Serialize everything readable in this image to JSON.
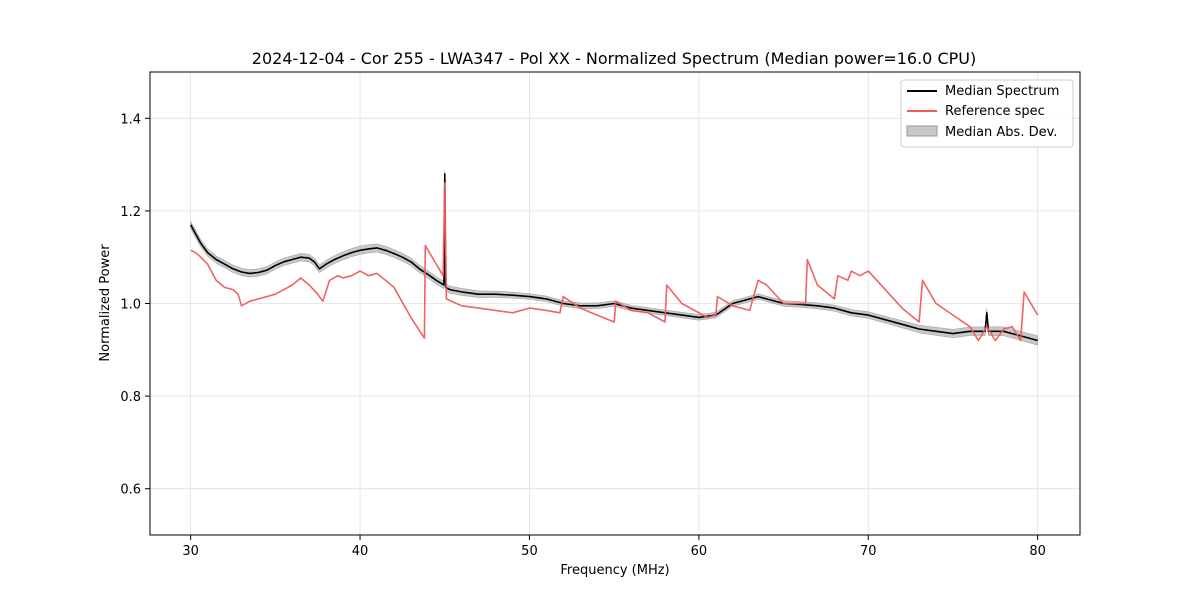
{
  "chart_data": {
    "type": "line",
    "title": "2024-12-04 - Cor 255 - LWA347 - Pol XX - Normalized Spectrum (Median power=16.0 CPU)",
    "xlabel": "Frequency (MHz)",
    "ylabel": "Normalized Power",
    "xlim": [
      27.6,
      82.5
    ],
    "ylim": [
      0.5,
      1.5
    ],
    "xticks": [
      30,
      40,
      50,
      60,
      70,
      80
    ],
    "yticks": [
      0.6,
      0.8,
      1.0,
      1.2,
      1.4
    ],
    "grid": true,
    "legend_position": "top-right",
    "colors": {
      "median": "#000000",
      "reference": "#ef5b5b",
      "mad_fill": "#b0b0b0",
      "grid": "#e0e0e0"
    },
    "series": [
      {
        "name": "Median Spectrum",
        "x": [
          30.0,
          30.3,
          30.6,
          31.0,
          31.5,
          32.0,
          32.5,
          33.0,
          33.5,
          34.0,
          34.5,
          35.0,
          35.5,
          36.0,
          36.5,
          37.0,
          37.3,
          37.6,
          38.0,
          38.5,
          39.0,
          39.5,
          40.0,
          40.5,
          41.0,
          41.5,
          42.0,
          42.5,
          43.0,
          43.5,
          44.0,
          44.5,
          44.95,
          45.0,
          45.05,
          45.3,
          46.0,
          47.0,
          48.0,
          49.0,
          50.0,
          51.0,
          52.0,
          53.0,
          54.0,
          55.0,
          55.5,
          56.0,
          57.0,
          58.0,
          59.0,
          60.0,
          61.0,
          62.0,
          63.0,
          63.5,
          64.0,
          65.0,
          66.0,
          67.0,
          68.0,
          69.0,
          70.0,
          71.0,
          72.0,
          73.0,
          74.0,
          75.0,
          76.0,
          76.9,
          77.0,
          77.1,
          78.0,
          79.0,
          80.0
        ],
        "values": [
          1.17,
          1.15,
          1.13,
          1.11,
          1.095,
          1.085,
          1.075,
          1.068,
          1.065,
          1.067,
          1.072,
          1.082,
          1.09,
          1.095,
          1.1,
          1.098,
          1.09,
          1.075,
          1.085,
          1.095,
          1.103,
          1.11,
          1.115,
          1.118,
          1.12,
          1.115,
          1.108,
          1.1,
          1.09,
          1.075,
          1.063,
          1.05,
          1.04,
          1.28,
          1.035,
          1.03,
          1.025,
          1.02,
          1.02,
          1.018,
          1.015,
          1.01,
          1.0,
          0.995,
          0.995,
          1.0,
          0.995,
          0.99,
          0.985,
          0.98,
          0.975,
          0.97,
          0.975,
          1.0,
          1.01,
          1.015,
          1.01,
          1.0,
          0.998,
          0.995,
          0.99,
          0.98,
          0.975,
          0.965,
          0.955,
          0.945,
          0.94,
          0.935,
          0.94,
          0.94,
          0.98,
          0.94,
          0.94,
          0.93,
          0.92
        ]
      },
      {
        "name": "Reference spec",
        "x": [
          30.0,
          30.3,
          30.6,
          31.0,
          31.5,
          32.0,
          32.5,
          32.8,
          33.0,
          33.5,
          34.0,
          35.0,
          35.5,
          36.0,
          36.5,
          37.0,
          37.5,
          37.8,
          38.2,
          38.7,
          39.0,
          39.5,
          40.0,
          40.5,
          41.0,
          41.5,
          42.0,
          43.0,
          43.8,
          43.85,
          44.9,
          45.0,
          45.1,
          46.0,
          47.0,
          48.0,
          49.0,
          50.0,
          51.0,
          51.8,
          52.0,
          53.0,
          54.0,
          55.0,
          55.1,
          56.0,
          57.0,
          58.0,
          58.1,
          59.0,
          60.0,
          60.5,
          61.0,
          61.1,
          62.0,
          63.0,
          63.5,
          64.0,
          65.0,
          66.0,
          66.3,
          66.4,
          67.0,
          68.0,
          68.2,
          68.8,
          69.0,
          69.5,
          70.0,
          71.0,
          72.0,
          73.0,
          73.2,
          74.0,
          75.0,
          76.0,
          76.5,
          77.0,
          77.5,
          78.0,
          78.5,
          79.0,
          79.2,
          80.0
        ],
        "values": [
          1.115,
          1.11,
          1.1,
          1.085,
          1.05,
          1.035,
          1.03,
          1.02,
          0.995,
          1.005,
          1.01,
          1.02,
          1.03,
          1.04,
          1.055,
          1.04,
          1.02,
          1.005,
          1.05,
          1.06,
          1.055,
          1.06,
          1.07,
          1.06,
          1.065,
          1.05,
          1.035,
          0.97,
          0.925,
          1.125,
          1.06,
          1.26,
          1.01,
          0.995,
          0.99,
          0.985,
          0.98,
          0.99,
          0.985,
          0.98,
          1.015,
          0.99,
          0.975,
          0.96,
          1.005,
          0.985,
          0.98,
          0.96,
          1.04,
          1.0,
          0.98,
          0.97,
          0.975,
          1.015,
          0.995,
          0.985,
          1.05,
          1.04,
          1.0,
          1.0,
          1.0,
          1.095,
          1.04,
          1.01,
          1.06,
          1.05,
          1.07,
          1.06,
          1.07,
          1.03,
          0.99,
          0.96,
          1.05,
          1.0,
          0.975,
          0.95,
          0.92,
          0.95,
          0.92,
          0.945,
          0.95,
          0.92,
          1.025,
          0.975
        ]
      },
      {
        "name": "Median Abs. Dev.",
        "x": [
          30.0,
          33.0,
          36.0,
          40.0,
          45.0,
          50.0,
          55.0,
          60.0,
          65.0,
          70.0,
          75.0,
          80.0
        ],
        "mad": [
          0.008,
          0.008,
          0.008,
          0.009,
          0.008,
          0.006,
          0.006,
          0.006,
          0.006,
          0.007,
          0.009,
          0.01
        ]
      }
    ]
  }
}
